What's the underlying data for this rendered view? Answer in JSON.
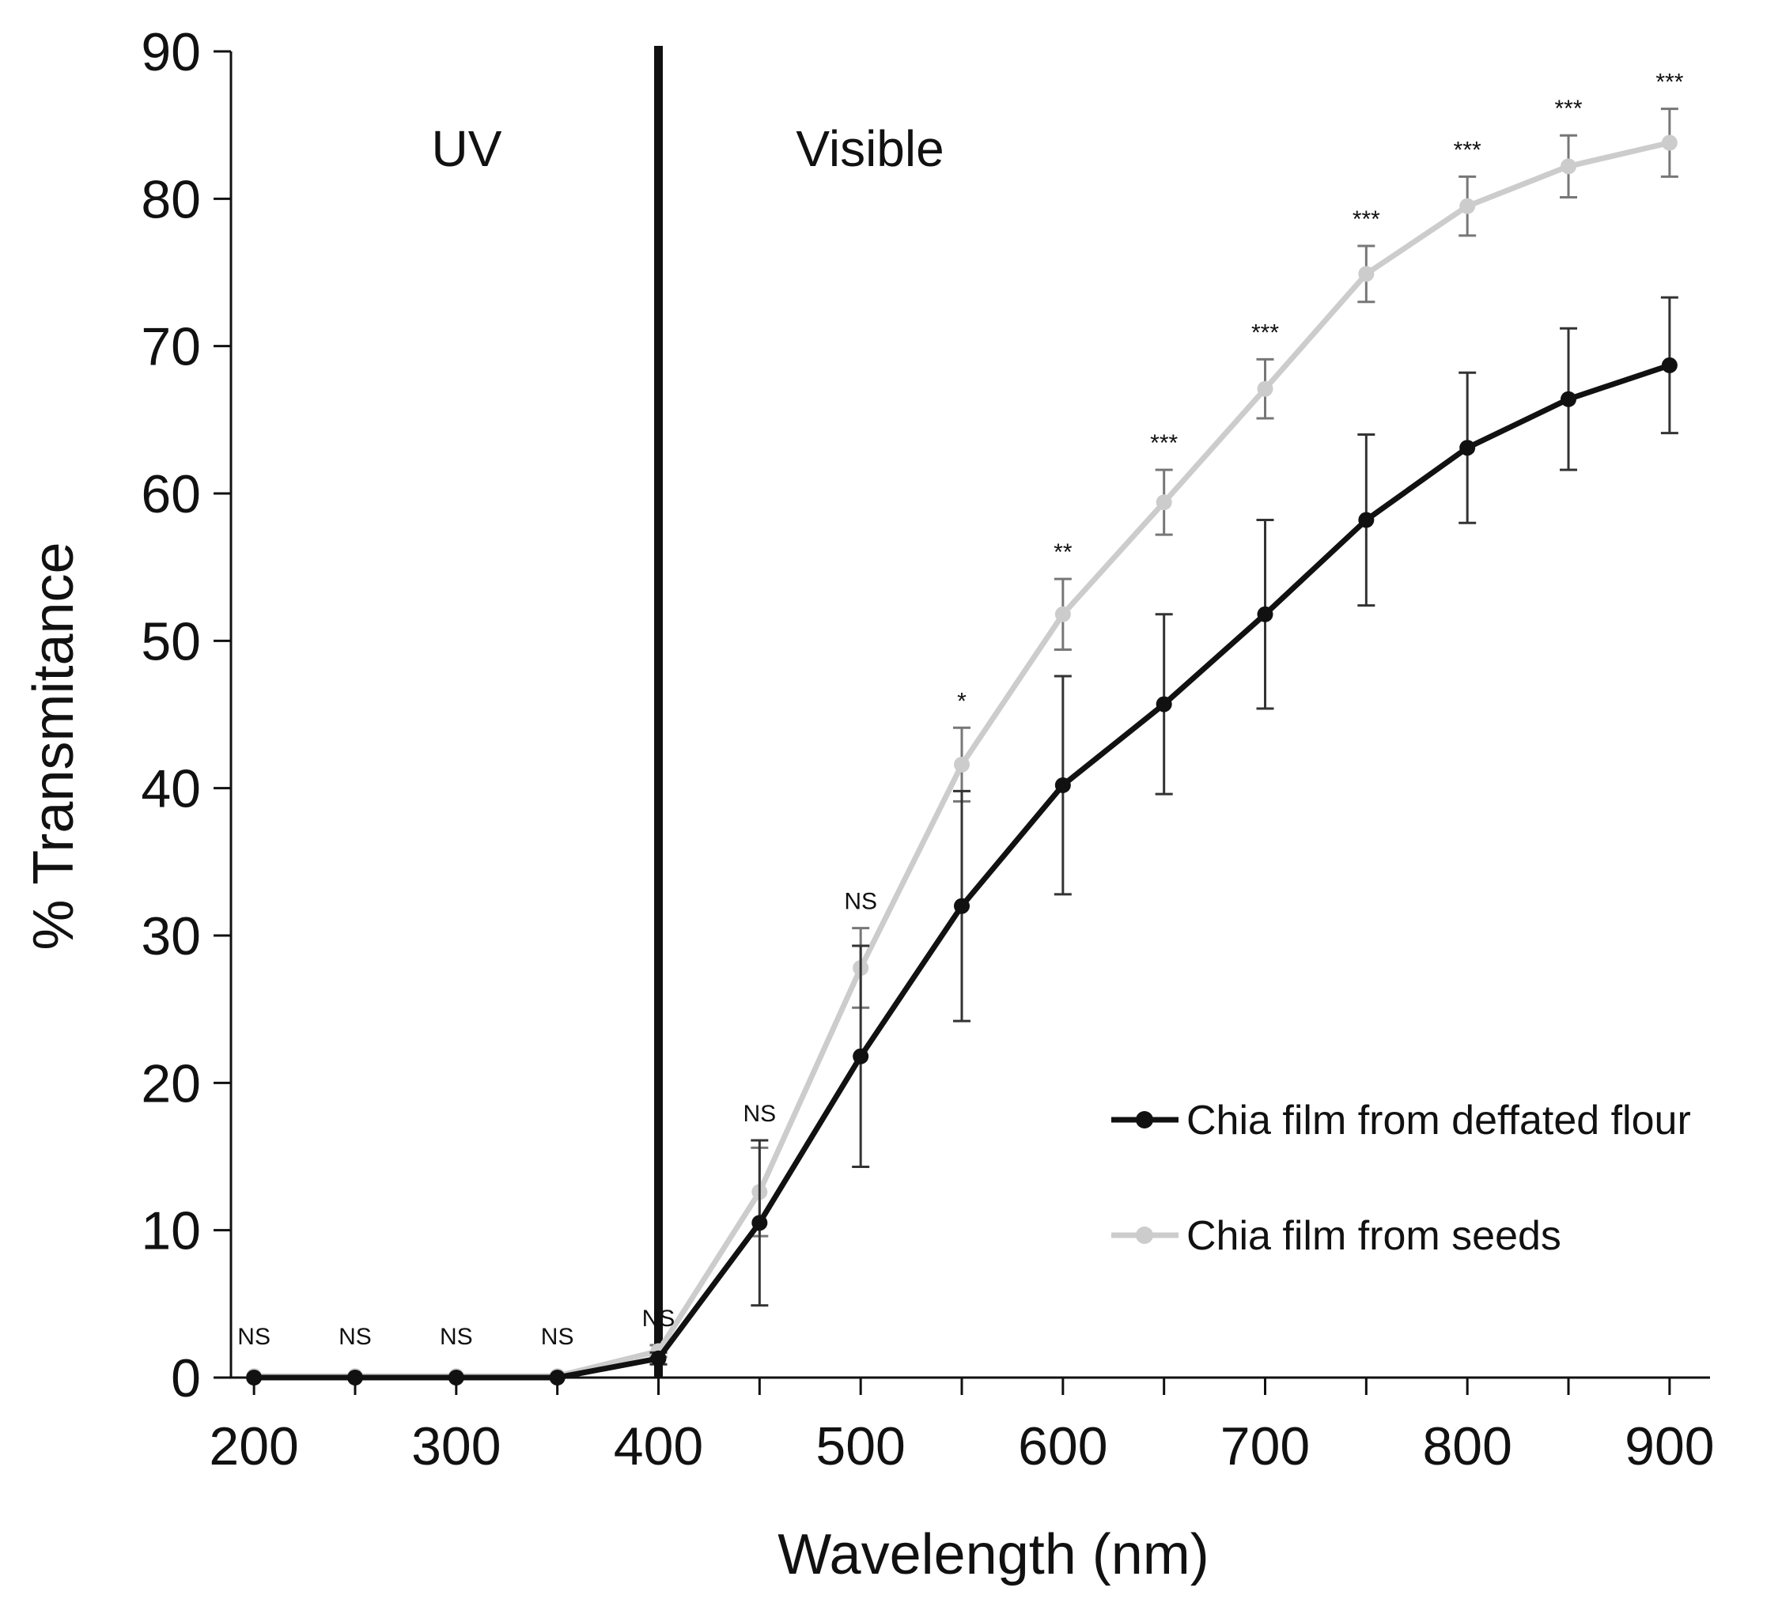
{
  "chart_data": {
    "type": "line",
    "title": "",
    "xlabel": "Wavelength (nm)",
    "ylabel": "% Transmitance",
    "xlim": [
      180,
      920
    ],
    "ylim": [
      0,
      90
    ],
    "xticks": [
      200,
      300,
      400,
      500,
      600,
      700,
      800,
      900
    ],
    "yticks": [
      0,
      10,
      20,
      30,
      40,
      50,
      60,
      70,
      80,
      90
    ],
    "grid": false,
    "legend_position": "lower-right",
    "x": [
      200,
      250,
      300,
      350,
      400,
      450,
      500,
      550,
      600,
      650,
      700,
      750,
      800,
      850,
      900
    ],
    "series": [
      {
        "name": "Chia film from deffated flour",
        "color": "#111111",
        "values": [
          0,
          0,
          0,
          0,
          1.3,
          10.5,
          21.8,
          32.0,
          40.2,
          45.7,
          51.8,
          58.2,
          63.1,
          66.4,
          68.7
        ],
        "errors": [
          0,
          0,
          0,
          0,
          0.4,
          5.6,
          7.5,
          7.8,
          7.4,
          6.1,
          6.4,
          5.8,
          5.1,
          4.8,
          4.6
        ]
      },
      {
        "name": "Chia film from seeds",
        "color": "#cccccc",
        "values": [
          0.1,
          0.1,
          0.1,
          0.1,
          1.8,
          12.6,
          27.8,
          41.6,
          51.8,
          59.4,
          67.1,
          74.9,
          79.5,
          82.2,
          83.8
        ],
        "errors": [
          0,
          0,
          0,
          0,
          0.4,
          3.0,
          2.7,
          2.5,
          2.4,
          2.2,
          2.0,
          1.9,
          2.0,
          2.1,
          2.3
        ]
      }
    ],
    "significance": [
      "NS",
      "NS",
      "NS",
      "NS",
      "NS",
      "NS",
      "NS",
      "*",
      "**",
      "***",
      "***",
      "***",
      "***",
      "***",
      "***"
    ],
    "divider_x": 400,
    "region_labels": {
      "uv": "UV",
      "visible": "Visible"
    }
  }
}
